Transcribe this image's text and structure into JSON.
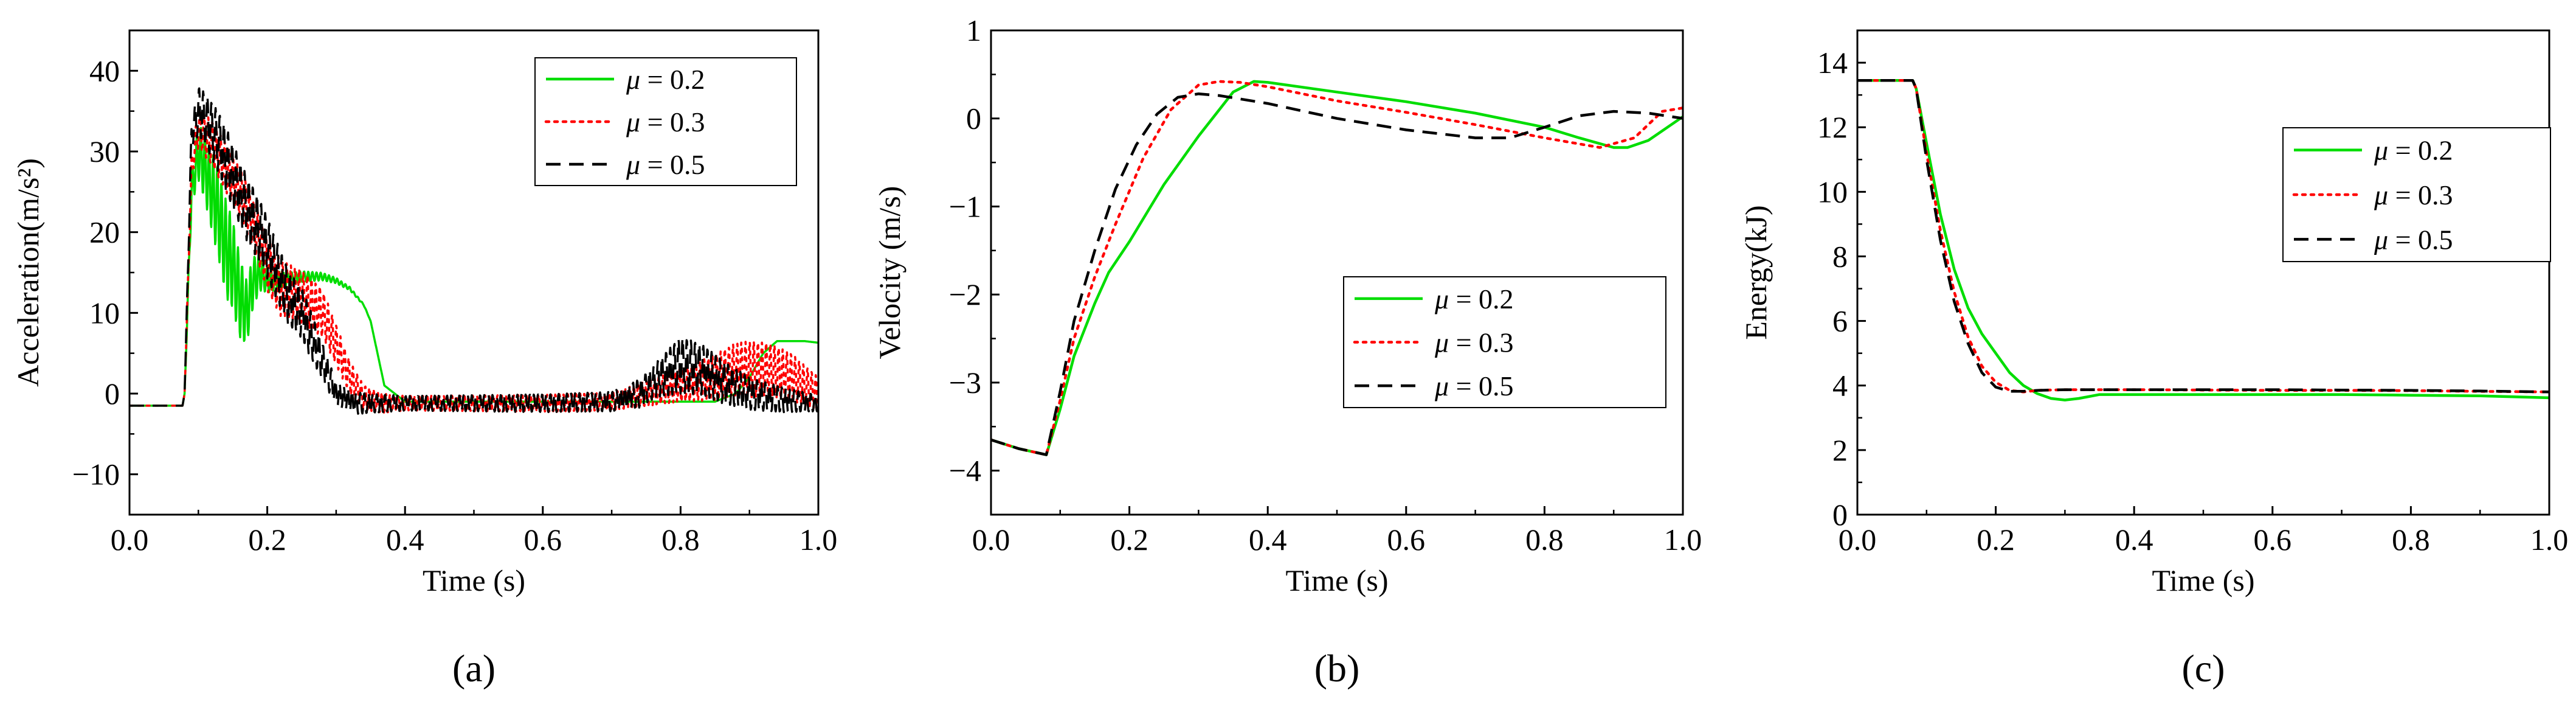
{
  "chart_data": [
    {
      "type": "line",
      "panel_label": "(a)",
      "xlabel": "Time (s)",
      "ylabel": "Acceleration(m/s²)",
      "xlim": [
        0,
        1
      ],
      "ylim": [
        -15,
        45
      ],
      "xticks": [
        0.0,
        0.2,
        0.4,
        0.6,
        0.8,
        1.0
      ],
      "xtick_labels": [
        "0.0",
        "0.2",
        "0.4",
        "0.6",
        "0.8",
        "1.0"
      ],
      "yticks": [
        -10,
        0,
        10,
        20,
        30,
        40
      ],
      "ytick_labels": [
        "−10",
        "0",
        "10",
        "20",
        "30",
        "40"
      ],
      "legend_position": "top-right",
      "series": [
        {
          "name": "μ = 0.2",
          "label_symbol": "μ",
          "label_value": " = 0.2",
          "color": "#00dd00",
          "style": "solid",
          "osc_amp": [
            [
              0.08,
              0
            ],
            [
              0.1,
              3.5
            ],
            [
              0.12,
              5
            ],
            [
              0.14,
              6
            ],
            [
              0.16,
              5
            ],
            [
              0.18,
              3
            ],
            [
              0.2,
              1.5
            ],
            [
              0.23,
              0.8
            ],
            [
              0.35,
              0
            ],
            [
              0.99,
              0
            ],
            [
              1,
              0
            ]
          ],
          "x": [
            0,
            0.077,
            0.08,
            0.09,
            0.1,
            0.11,
            0.12,
            0.13,
            0.14,
            0.15,
            0.16,
            0.17,
            0.18,
            0.19,
            0.2,
            0.21,
            0.22,
            0.25,
            0.28,
            0.3,
            0.32,
            0.34,
            0.35,
            0.36,
            0.37,
            0.4,
            0.5,
            0.6,
            0.7,
            0.8,
            0.85,
            0.88,
            0.9,
            0.92,
            0.94,
            0.96,
            0.98,
            1.0
          ],
          "y": [
            -1.5,
            -1.5,
            0,
            25,
            30,
            28,
            25,
            22,
            18,
            16,
            12,
            10,
            14,
            15,
            14,
            14,
            14,
            14.5,
            14.5,
            14,
            13,
            11,
            9,
            5,
            1,
            -1,
            -1,
            -1,
            -1,
            -1,
            -1,
            0,
            2,
            5,
            6.5,
            6.5,
            6.5,
            6.3
          ]
        },
        {
          "name": "μ = 0.3",
          "label_symbol": "μ",
          "label_value": " = 0.3",
          "color": "#ff0000",
          "style": "dotted",
          "osc_amp": [
            [
              0.08,
              0
            ],
            [
              0.1,
              2.5
            ],
            [
              0.14,
              3
            ],
            [
              0.18,
              3
            ],
            [
              0.22,
              3.5
            ],
            [
              0.28,
              3
            ],
            [
              0.34,
              1.5
            ],
            [
              0.4,
              0.9
            ],
            [
              0.7,
              1.1
            ],
            [
              0.8,
              2
            ],
            [
              0.86,
              3
            ],
            [
              0.9,
              3.5
            ],
            [
              0.96,
              3
            ],
            [
              1,
              2
            ]
          ],
          "x": [
            0,
            0.077,
            0.08,
            0.09,
            0.1,
            0.12,
            0.14,
            0.16,
            0.18,
            0.2,
            0.22,
            0.25,
            0.28,
            0.3,
            0.32,
            0.34,
            0.37,
            0.4,
            0.5,
            0.6,
            0.7,
            0.75,
            0.8,
            0.85,
            0.88,
            0.9,
            0.93,
            0.96,
            1.0
          ],
          "y": [
            -1.5,
            -1.5,
            0,
            28,
            33,
            31,
            28,
            25,
            21,
            16,
            13,
            12,
            10,
            6,
            2,
            -0.5,
            -1.2,
            -1.2,
            -1.2,
            -1.2,
            -1,
            0,
            1,
            2,
            3,
            3,
            3,
            2,
            0
          ]
        },
        {
          "name": "μ = 0.5",
          "label_symbol": "μ",
          "label_value": " = 0.5",
          "color": "#000000",
          "style": "dashed",
          "osc_amp": [
            [
              0.08,
              0
            ],
            [
              0.1,
              3
            ],
            [
              0.14,
              4
            ],
            [
              0.18,
              4
            ],
            [
              0.22,
              3.5
            ],
            [
              0.26,
              3
            ],
            [
              0.3,
              1.5
            ],
            [
              0.4,
              0.9
            ],
            [
              0.7,
              1.2
            ],
            [
              0.76,
              2
            ],
            [
              0.8,
              3.5
            ],
            [
              0.84,
              3
            ],
            [
              0.9,
              2
            ],
            [
              1,
              1
            ]
          ],
          "x": [
            0,
            0.077,
            0.08,
            0.09,
            0.1,
            0.11,
            0.13,
            0.15,
            0.17,
            0.19,
            0.21,
            0.23,
            0.25,
            0.27,
            0.29,
            0.3,
            0.33,
            0.4,
            0.5,
            0.6,
            0.7,
            0.74,
            0.77,
            0.8,
            0.83,
            0.86,
            0.9,
            0.95,
            1.0
          ],
          "y": [
            -1.5,
            -1.5,
            0,
            32,
            35,
            34,
            31,
            27,
            23,
            20,
            16,
            12,
            10,
            6,
            2,
            0,
            -1.2,
            -1.2,
            -1.2,
            -1.2,
            -1,
            0,
            2,
            3.5,
            3,
            1.5,
            0,
            -0.8,
            -1.2
          ]
        }
      ]
    },
    {
      "type": "line",
      "panel_label": "(b)",
      "xlabel": "Time (s)",
      "ylabel": "Velocity (m/s)",
      "xlim": [
        0,
        1
      ],
      "ylim": [
        -4.5,
        1
      ],
      "xticks": [
        0.0,
        0.2,
        0.4,
        0.6,
        0.8,
        1.0
      ],
      "xtick_labels": [
        "0.0",
        "0.2",
        "0.4",
        "0.6",
        "0.8",
        "1.0"
      ],
      "yticks": [
        -4,
        -3,
        -2,
        -1,
        0,
        1
      ],
      "ytick_labels": [
        "−4",
        "−3",
        "−2",
        "−1",
        "0",
        "1"
      ],
      "legend_position": "bottom-right",
      "series": [
        {
          "name": "μ = 0.2",
          "label_symbol": "μ",
          "label_value": " = 0.2",
          "color": "#00dd00",
          "style": "solid",
          "x": [
            0,
            0.04,
            0.08,
            0.1,
            0.12,
            0.15,
            0.17,
            0.2,
            0.25,
            0.3,
            0.35,
            0.38,
            0.4,
            0.5,
            0.6,
            0.7,
            0.8,
            0.85,
            0.9,
            0.92,
            0.95,
            1.0
          ],
          "y": [
            -3.65,
            -3.75,
            -3.82,
            -3.3,
            -2.7,
            -2.1,
            -1.75,
            -1.4,
            -0.75,
            -0.2,
            0.3,
            0.42,
            0.41,
            0.3,
            0.19,
            0.06,
            -0.1,
            -0.22,
            -0.33,
            -0.33,
            -0.25,
            0.02
          ]
        },
        {
          "name": "μ = 0.3",
          "label_symbol": "μ",
          "label_value": " = 0.3",
          "color": "#ff0000",
          "style": "dotted",
          "x": [
            0,
            0.04,
            0.08,
            0.1,
            0.12,
            0.15,
            0.18,
            0.22,
            0.26,
            0.3,
            0.33,
            0.36,
            0.4,
            0.5,
            0.6,
            0.7,
            0.8,
            0.88,
            0.93,
            0.97,
            1.0
          ],
          "y": [
            -3.65,
            -3.75,
            -3.82,
            -3.2,
            -2.5,
            -1.8,
            -1.2,
            -0.45,
            0.1,
            0.38,
            0.42,
            0.41,
            0.36,
            0.2,
            0.07,
            -0.07,
            -0.22,
            -0.33,
            -0.22,
            0.08,
            0.12
          ]
        },
        {
          "name": "μ = 0.5",
          "label_symbol": "μ",
          "label_value": " = 0.5",
          "color": "#000000",
          "style": "dashed",
          "x": [
            0,
            0.04,
            0.08,
            0.1,
            0.12,
            0.15,
            0.18,
            0.21,
            0.24,
            0.27,
            0.3,
            0.33,
            0.4,
            0.5,
            0.6,
            0.7,
            0.75,
            0.8,
            0.85,
            0.9,
            0.95,
            1.0
          ],
          "y": [
            -3.65,
            -3.75,
            -3.82,
            -3.1,
            -2.3,
            -1.5,
            -0.8,
            -0.3,
            0.05,
            0.24,
            0.28,
            0.26,
            0.17,
            0.0,
            -0.13,
            -0.22,
            -0.22,
            -0.1,
            0.03,
            0.08,
            0.06,
            0.0
          ]
        }
      ]
    },
    {
      "type": "line",
      "panel_label": "(c)",
      "xlabel": "Time (s)",
      "ylabel": "Energy(kJ)",
      "xlim": [
        0,
        1
      ],
      "ylim": [
        0,
        15
      ],
      "xticks": [
        0.0,
        0.2,
        0.4,
        0.6,
        0.8,
        1.0
      ],
      "xtick_labels": [
        "0.0",
        "0.2",
        "0.4",
        "0.6",
        "0.8",
        "1.0"
      ],
      "yticks": [
        0,
        2,
        4,
        6,
        8,
        10,
        12,
        14
      ],
      "ytick_labels": [
        "0",
        "2",
        "4",
        "6",
        "8",
        "10",
        "12",
        "14"
      ],
      "legend_position": "top-right",
      "series": [
        {
          "name": "μ = 0.2",
          "label_symbol": "μ",
          "label_value": " = 0.2",
          "color": "#00dd00",
          "style": "solid",
          "x": [
            0,
            0.08,
            0.085,
            0.1,
            0.12,
            0.14,
            0.16,
            0.18,
            0.2,
            0.22,
            0.24,
            0.26,
            0.28,
            0.3,
            0.32,
            0.35,
            0.4,
            0.5,
            0.6,
            0.7,
            0.8,
            0.9,
            1.0
          ],
          "y": [
            13.45,
            13.45,
            13.2,
            11.5,
            9.3,
            7.6,
            6.4,
            5.6,
            5.0,
            4.4,
            4.0,
            3.75,
            3.6,
            3.55,
            3.6,
            3.72,
            3.72,
            3.72,
            3.72,
            3.72,
            3.7,
            3.68,
            3.62
          ]
        },
        {
          "name": "μ = 0.3",
          "label_symbol": "μ",
          "label_value": " = 0.3",
          "color": "#ff0000",
          "style": "dotted",
          "x": [
            0,
            0.08,
            0.085,
            0.1,
            0.12,
            0.14,
            0.16,
            0.18,
            0.2,
            0.22,
            0.24,
            0.26,
            0.3,
            0.4,
            0.5,
            0.6,
            0.7,
            0.8,
            0.9,
            1.0
          ],
          "y": [
            13.45,
            13.45,
            13.2,
            11.2,
            8.8,
            6.9,
            5.5,
            4.6,
            4.1,
            3.85,
            3.8,
            3.85,
            3.87,
            3.87,
            3.86,
            3.85,
            3.85,
            3.84,
            3.82,
            3.8
          ]
        },
        {
          "name": "μ = 0.5",
          "label_symbol": "μ",
          "label_value": " = 0.5",
          "color": "#000000",
          "style": "dashed",
          "x": [
            0,
            0.08,
            0.085,
            0.1,
            0.12,
            0.14,
            0.16,
            0.18,
            0.2,
            0.22,
            0.24,
            0.26,
            0.3,
            0.4,
            0.5,
            0.6,
            0.7,
            0.8,
            0.9,
            1.0
          ],
          "y": [
            13.45,
            13.45,
            13.2,
            11.0,
            8.5,
            6.6,
            5.3,
            4.4,
            3.95,
            3.82,
            3.82,
            3.85,
            3.87,
            3.87,
            3.87,
            3.87,
            3.86,
            3.85,
            3.83,
            3.8
          ]
        }
      ]
    }
  ]
}
